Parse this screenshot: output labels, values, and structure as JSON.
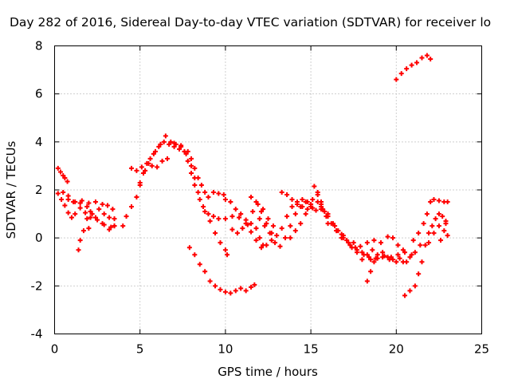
{
  "chart_data": {
    "type": "scatter",
    "title": "Day 282 of 2016, Sidereal Day-to-day VTEC variation (SDTVAR) for receiver lo",
    "xlabel": "GPS time / hours",
    "ylabel": "SDTVAR / TECUs",
    "xlim": [
      0,
      25
    ],
    "ylim": [
      -4,
      8
    ],
    "xticks": [
      "0",
      "5",
      "10",
      "15",
      "20",
      "25"
    ],
    "yticks": [
      "-4",
      "-2",
      "0",
      "2",
      "4",
      "6",
      "8"
    ],
    "grid": true,
    "marker": "+",
    "color": "#ff0000",
    "series": [
      {
        "points": [
          [
            0.2,
            2.9
          ],
          [
            0.35,
            2.75
          ],
          [
            0.5,
            2.6
          ],
          [
            0.6,
            2.5
          ],
          [
            0.75,
            2.35
          ],
          [
            0.2,
            1.85
          ],
          [
            0.4,
            1.6
          ],
          [
            0.6,
            1.35
          ],
          [
            0.8,
            1.05
          ],
          [
            1.0,
            0.85
          ],
          [
            1.2,
            1.0
          ],
          [
            1.5,
            1.25
          ],
          [
            1.8,
            1.05
          ],
          [
            2.1,
            0.85
          ],
          [
            2.5,
            0.75
          ],
          [
            2.9,
            0.55
          ],
          [
            3.3,
            0.45
          ],
          [
            3.5,
            0.5
          ],
          [
            0.5,
            1.9
          ],
          [
            0.8,
            1.75
          ],
          [
            1.1,
            1.5
          ],
          [
            1.5,
            1.45
          ],
          [
            1.9,
            1.3
          ],
          [
            2.2,
            1.0
          ],
          [
            2.6,
            1.2
          ],
          [
            2.9,
            1.0
          ],
          [
            3.2,
            0.85
          ],
          [
            3.5,
            0.8
          ],
          [
            0.8,
            1.6
          ],
          [
            1.2,
            1.5
          ],
          [
            1.6,
            1.55
          ],
          [
            2.0,
            1.45
          ],
          [
            2.4,
            1.5
          ],
          [
            2.8,
            1.4
          ],
          [
            3.1,
            1.35
          ],
          [
            3.4,
            1.2
          ],
          [
            1.4,
            -0.5
          ],
          [
            1.5,
            -0.1
          ],
          [
            1.7,
            0.3
          ],
          [
            1.9,
            0.8
          ],
          [
            2.1,
            1.1
          ],
          [
            2.0,
            0.4
          ],
          [
            2.4,
            0.85
          ],
          [
            2.8,
            0.6
          ],
          [
            3.2,
            0.35
          ],
          [
            3.5,
            0.5
          ],
          [
            4.0,
            0.5
          ],
          [
            4.2,
            0.9
          ],
          [
            4.5,
            1.3
          ],
          [
            4.8,
            1.7
          ],
          [
            5.0,
            2.3
          ],
          [
            5.2,
            2.7
          ],
          [
            5.5,
            3.1
          ],
          [
            5.8,
            3.5
          ],
          [
            6.1,
            3.8
          ],
          [
            6.4,
            4.0
          ],
          [
            6.7,
            3.9
          ],
          [
            7.0,
            3.8
          ],
          [
            7.3,
            3.7
          ],
          [
            7.6,
            3.6
          ],
          [
            4.5,
            2.9
          ],
          [
            4.8,
            2.8
          ],
          [
            5.1,
            2.95
          ],
          [
            5.4,
            3.1
          ],
          [
            5.7,
            3.0
          ],
          [
            6.0,
            2.95
          ],
          [
            6.3,
            3.2
          ],
          [
            6.6,
            3.3
          ],
          [
            5.0,
            2.2
          ],
          [
            5.3,
            2.8
          ],
          [
            5.6,
            3.3
          ],
          [
            5.9,
            3.6
          ],
          [
            6.2,
            3.9
          ],
          [
            6.5,
            4.25
          ],
          [
            6.8,
            4.0
          ],
          [
            7.1,
            3.9
          ],
          [
            7.4,
            3.8
          ],
          [
            7.7,
            3.5
          ],
          [
            8.0,
            3.0
          ],
          [
            8.2,
            2.5
          ],
          [
            8.4,
            1.9
          ],
          [
            8.7,
            1.3
          ],
          [
            9.0,
            1.0
          ],
          [
            9.3,
            0.9
          ],
          [
            9.6,
            0.8
          ],
          [
            10.0,
            0.8
          ],
          [
            10.4,
            0.9
          ],
          [
            10.8,
            0.85
          ],
          [
            11.2,
            0.75
          ],
          [
            11.5,
            0.6
          ],
          [
            11.8,
            0.4
          ],
          [
            12.0,
            0.0
          ],
          [
            12.2,
            -0.3
          ],
          [
            7.0,
            3.95
          ],
          [
            7.4,
            3.85
          ],
          [
            7.8,
            3.6
          ],
          [
            8.0,
            3.3
          ],
          [
            8.2,
            2.9
          ],
          [
            8.4,
            2.5
          ],
          [
            8.6,
            2.2
          ],
          [
            8.8,
            1.9
          ],
          [
            9.0,
            1.7
          ],
          [
            9.3,
            1.9
          ],
          [
            9.6,
            1.85
          ],
          [
            9.9,
            1.8
          ],
          [
            7.8,
            3.2
          ],
          [
            8.0,
            2.7
          ],
          [
            8.2,
            2.2
          ],
          [
            8.5,
            1.6
          ],
          [
            8.8,
            1.1
          ],
          [
            9.1,
            0.7
          ],
          [
            9.4,
            0.2
          ],
          [
            9.7,
            -0.2
          ],
          [
            10.0,
            -0.5
          ],
          [
            10.1,
            -0.7
          ],
          [
            7.9,
            -0.4
          ],
          [
            8.2,
            -0.7
          ],
          [
            8.5,
            -1.1
          ],
          [
            8.8,
            -1.4
          ],
          [
            9.1,
            -1.8
          ],
          [
            9.4,
            -2.0
          ],
          [
            9.7,
            -2.15
          ],
          [
            10.0,
            -2.25
          ],
          [
            10.3,
            -2.3
          ],
          [
            10.6,
            -2.2
          ],
          [
            10.9,
            -2.1
          ],
          [
            11.2,
            -2.2
          ],
          [
            11.5,
            -2.05
          ],
          [
            11.7,
            -1.95
          ],
          [
            10.0,
            1.6
          ],
          [
            10.3,
            1.5
          ],
          [
            10.6,
            1.2
          ],
          [
            10.9,
            1.0
          ],
          [
            11.2,
            0.6
          ],
          [
            11.5,
            0.25
          ],
          [
            11.8,
            -0.1
          ],
          [
            12.1,
            -0.4
          ],
          [
            12.4,
            -0.3
          ],
          [
            12.7,
            -0.1
          ],
          [
            10.4,
            0.35
          ],
          [
            10.7,
            0.2
          ],
          [
            11.0,
            0.4
          ],
          [
            11.3,
            0.55
          ],
          [
            11.6,
            1.1
          ],
          [
            11.9,
            1.4
          ],
          [
            12.2,
            1.2
          ],
          [
            12.5,
            0.8
          ],
          [
            12.8,
            0.5
          ],
          [
            11.5,
            1.7
          ],
          [
            11.8,
            1.5
          ],
          [
            12.1,
            1.1
          ],
          [
            12.4,
            0.6
          ],
          [
            12.7,
            0.2
          ],
          [
            13.0,
            0.1
          ],
          [
            13.3,
            0.4
          ],
          [
            13.6,
            0.9
          ],
          [
            13.9,
            1.3
          ],
          [
            14.2,
            1.5
          ],
          [
            14.5,
            1.6
          ],
          [
            14.8,
            1.5
          ],
          [
            15.1,
            1.6
          ],
          [
            15.4,
            1.8
          ],
          [
            15.6,
            1.5
          ],
          [
            15.8,
            1.1
          ],
          [
            16.0,
            0.6
          ],
          [
            12.0,
            0.8
          ],
          [
            12.3,
            0.5
          ],
          [
            12.6,
            0.2
          ],
          [
            12.9,
            -0.2
          ],
          [
            13.2,
            -0.35
          ],
          [
            13.5,
            0.0
          ],
          [
            13.8,
            0.5
          ],
          [
            14.1,
            1.0
          ],
          [
            14.4,
            1.3
          ],
          [
            14.7,
            1.5
          ],
          [
            15.0,
            1.3
          ],
          [
            15.3,
            1.15
          ],
          [
            15.6,
            1.2
          ],
          [
            13.3,
            1.9
          ],
          [
            13.6,
            1.8
          ],
          [
            13.9,
            1.6
          ],
          [
            14.2,
            1.4
          ],
          [
            14.5,
            1.3
          ],
          [
            14.8,
            1.2
          ],
          [
            15.1,
            1.25
          ],
          [
            15.4,
            1.5
          ],
          [
            15.7,
            1.2
          ],
          [
            16.0,
            0.9
          ],
          [
            16.3,
            0.6
          ],
          [
            16.6,
            0.3
          ],
          [
            16.9,
            0.1
          ],
          [
            13.8,
            0.0
          ],
          [
            14.1,
            0.3
          ],
          [
            14.4,
            0.6
          ],
          [
            14.7,
            1.0
          ],
          [
            15.0,
            1.4
          ],
          [
            15.2,
            2.15
          ],
          [
            15.4,
            1.9
          ],
          [
            15.6,
            1.3
          ],
          [
            15.9,
            0.9
          ],
          [
            16.2,
            0.6
          ],
          [
            16.5,
            0.3
          ],
          [
            16.8,
            0.15
          ],
          [
            17.1,
            -0.1
          ],
          [
            17.4,
            -0.4
          ],
          [
            17.7,
            -0.6
          ],
          [
            18.0,
            -0.9
          ],
          [
            18.3,
            -0.7
          ],
          [
            18.6,
            -0.5
          ],
          [
            15.6,
            1.4
          ],
          [
            16.0,
            1.0
          ],
          [
            16.4,
            0.5
          ],
          [
            16.8,
            0.0
          ],
          [
            17.2,
            -0.2
          ],
          [
            17.6,
            -0.4
          ],
          [
            18.0,
            -0.6
          ],
          [
            18.4,
            -0.8
          ],
          [
            18.8,
            -0.85
          ],
          [
            19.2,
            -0.8
          ],
          [
            19.6,
            -0.9
          ],
          [
            20.0,
            -1.0
          ],
          [
            20.4,
            -1.0
          ],
          [
            16.5,
            0.3
          ],
          [
            16.9,
            0.0
          ],
          [
            17.3,
            -0.3
          ],
          [
            17.7,
            -0.5
          ],
          [
            18.1,
            -0.7
          ],
          [
            18.5,
            -0.9
          ],
          [
            18.9,
            -0.85
          ],
          [
            19.3,
            -0.75
          ],
          [
            19.7,
            -0.8
          ],
          [
            20.1,
            -0.7
          ],
          [
            20.5,
            -0.6
          ],
          [
            17.5,
            -0.2
          ],
          [
            17.9,
            -0.35
          ],
          [
            18.3,
            -0.2
          ],
          [
            18.7,
            -0.1
          ],
          [
            19.1,
            -0.2
          ],
          [
            19.5,
            0.05
          ],
          [
            19.8,
            0.0
          ],
          [
            20.1,
            -0.3
          ],
          [
            20.4,
            -0.5
          ],
          [
            20.8,
            -0.8
          ],
          [
            21.1,
            -0.6
          ],
          [
            21.4,
            -0.3
          ],
          [
            18.3,
            -1.8
          ],
          [
            18.5,
            -1.4
          ],
          [
            18.7,
            -1.0
          ],
          [
            18.9,
            -0.7
          ],
          [
            19.2,
            -0.6
          ],
          [
            19.5,
            -0.8
          ],
          [
            19.8,
            -0.9
          ],
          [
            20.2,
            -0.85
          ],
          [
            20.6,
            -1.0
          ],
          [
            20.9,
            -0.7
          ],
          [
            20.5,
            -2.4
          ],
          [
            20.8,
            -2.2
          ],
          [
            21.1,
            -2.0
          ],
          [
            21.3,
            -1.5
          ],
          [
            21.5,
            -1.0
          ],
          [
            21.7,
            -0.3
          ],
          [
            21.9,
            0.2
          ],
          [
            22.1,
            0.5
          ],
          [
            22.3,
            0.8
          ],
          [
            22.5,
            1.0
          ],
          [
            22.7,
            0.9
          ],
          [
            22.9,
            0.7
          ],
          [
            21.0,
            -0.1
          ],
          [
            21.3,
            0.2
          ],
          [
            21.6,
            0.6
          ],
          [
            21.8,
            1.0
          ],
          [
            22.0,
            1.5
          ],
          [
            22.2,
            1.6
          ],
          [
            22.5,
            1.55
          ],
          [
            22.8,
            1.5
          ],
          [
            23.0,
            1.5
          ],
          [
            21.9,
            -0.2
          ],
          [
            22.2,
            0.2
          ],
          [
            22.5,
            0.5
          ],
          [
            22.8,
            0.3
          ],
          [
            23.0,
            0.1
          ],
          [
            22.6,
            -0.1
          ],
          [
            22.9,
            0.6
          ],
          [
            20.0,
            6.6
          ],
          [
            20.3,
            6.85
          ],
          [
            20.6,
            7.05
          ],
          [
            20.9,
            7.2
          ],
          [
            21.2,
            7.3
          ],
          [
            21.5,
            7.5
          ],
          [
            21.8,
            7.6
          ],
          [
            22.0,
            7.45
          ]
        ]
      }
    ]
  }
}
